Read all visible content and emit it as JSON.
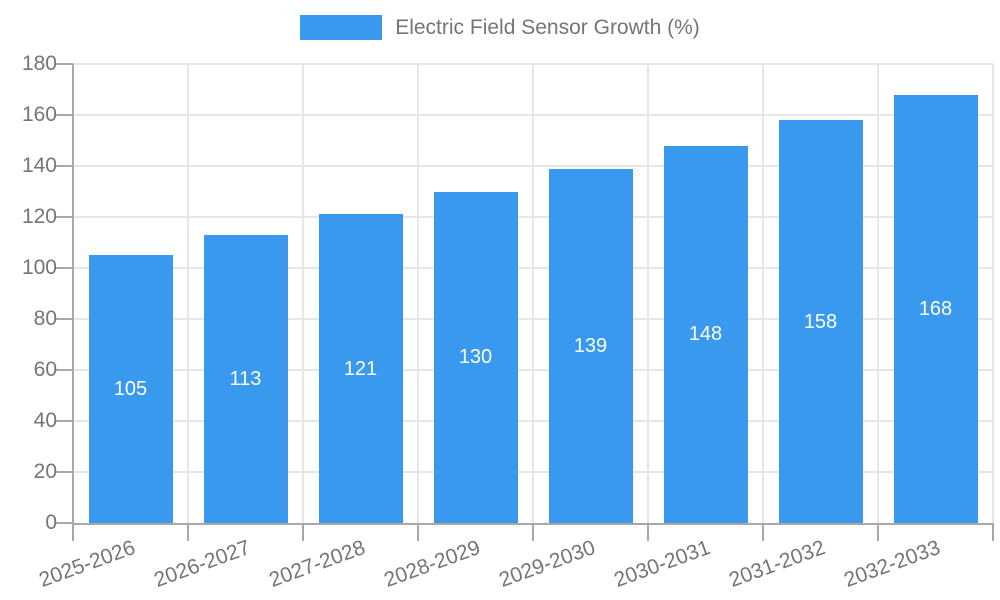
{
  "chart_data": {
    "type": "bar",
    "title": "Electric Field Sensor Growth (%)",
    "categories": [
      "2025-2026",
      "2026-2027",
      "2027-2028",
      "2028-2029",
      "2029-2030",
      "2030-2031",
      "2031-2032",
      "2032-2033"
    ],
    "series": [
      {
        "name": "Electric Field Sensor Growth (%)",
        "values": [
          105,
          113,
          121,
          130,
          139,
          148,
          158,
          168
        ]
      }
    ],
    "value_labels_shown": true,
    "xlabel": "",
    "ylabel": "",
    "ylim": [
      0,
      180
    ],
    "yticks": [
      0,
      20,
      40,
      60,
      80,
      100,
      120,
      140,
      160,
      180
    ],
    "grid": true,
    "legend_position": "top-center",
    "x_tick_rotation_deg": -20,
    "colors": {
      "bar": "#3899ee",
      "value_label": "#ffffff",
      "grid": "#e6e6e6",
      "axis": "#a8a8a8",
      "tick_label": "#757575",
      "legend_label": "#757575",
      "background": "#ffffff"
    }
  }
}
